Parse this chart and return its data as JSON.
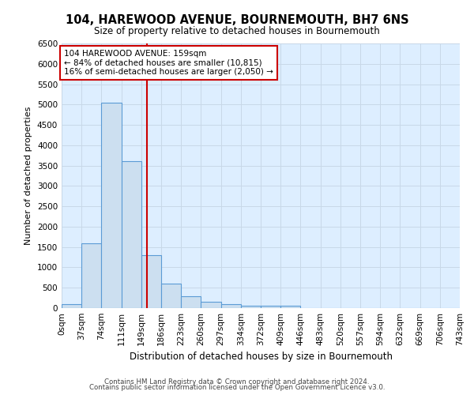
{
  "title": "104, HAREWOOD AVENUE, BOURNEMOUTH, BH7 6NS",
  "subtitle": "Size of property relative to detached houses in Bournemouth",
  "xlabel": "Distribution of detached houses by size in Bournemouth",
  "ylabel": "Number of detached properties",
  "footer1": "Contains HM Land Registry data © Crown copyright and database right 2024.",
  "footer2": "Contains public sector information licensed under the Open Government Licence v3.0.",
  "bin_labels": [
    "0sqm",
    "37sqm",
    "74sqm",
    "111sqm",
    "149sqm",
    "186sqm",
    "223sqm",
    "260sqm",
    "297sqm",
    "334sqm",
    "372sqm",
    "409sqm",
    "446sqm",
    "483sqm",
    "520sqm",
    "557sqm",
    "594sqm",
    "632sqm",
    "669sqm",
    "706sqm",
    "743sqm"
  ],
  "bar_values": [
    100,
    1600,
    5050,
    3600,
    1300,
    600,
    300,
    150,
    100,
    50,
    50,
    50,
    0,
    0,
    0,
    0,
    0,
    0,
    0,
    0
  ],
  "bar_color": "#ccdff0",
  "bar_edge_color": "#5b9bd5",
  "property_value": 159,
  "bin_width": 37,
  "vline_color": "#cc0000",
  "vline_x": 159,
  "annotation_text": "104 HAREWOOD AVENUE: 159sqm\n← 84% of detached houses are smaller (10,815)\n16% of semi-detached houses are larger (2,050) →",
  "annotation_box_color": "#cc0000",
  "ylim": [
    0,
    6500
  ],
  "yticks": [
    0,
    500,
    1000,
    1500,
    2000,
    2500,
    3000,
    3500,
    4000,
    4500,
    5000,
    5500,
    6000,
    6500
  ],
  "grid_color": "#c8d8e8",
  "background_color": "#ddeeff"
}
